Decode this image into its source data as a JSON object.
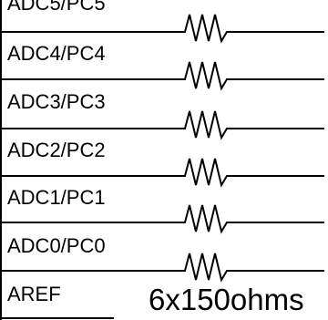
{
  "pins": [
    {
      "label": "ADC5/PC5"
    },
    {
      "label": "ADC4/PC4"
    },
    {
      "label": "ADC3/PC3"
    },
    {
      "label": "ADC2/PC2"
    },
    {
      "label": "ADC1/PC1"
    },
    {
      "label": "ADC0/PC0"
    },
    {
      "label": "AREF"
    }
  ],
  "resistor_caption": "6x150ohms",
  "colors": {
    "line": "#000000",
    "background": "#ffffff"
  }
}
